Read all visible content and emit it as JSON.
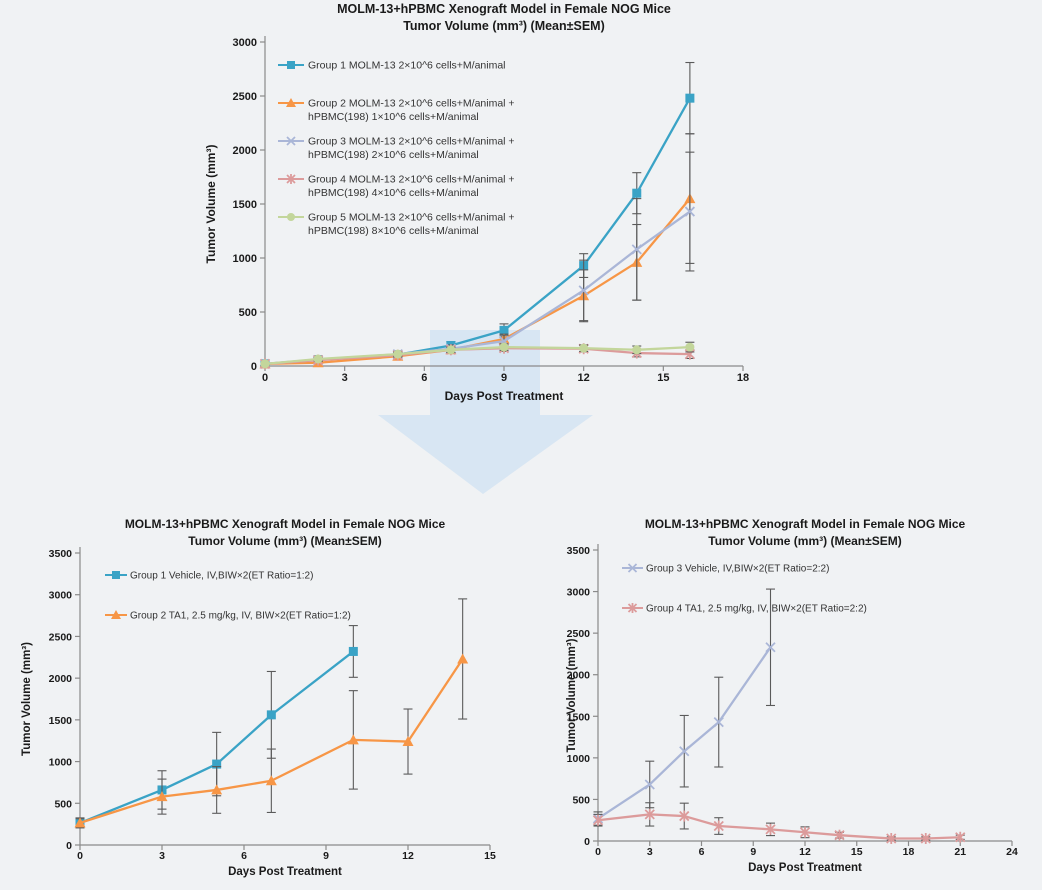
{
  "page": {
    "background_color": "#F0F2F4"
  },
  "arrow": {
    "name": "down-arrow",
    "fill_color": "#D6E5F2"
  },
  "colors": {
    "axis": "#8A8A8A",
    "error_bar": "#5A5A5A",
    "tick_label": "#1A1A1A",
    "legend_text": "#333333"
  },
  "chart_data": [
    {
      "id": "combined-model-chart",
      "type": "line",
      "title": [
        "MOLM-13+hPBMC Xenograft Model in Female NOG Mice",
        "Tumor Volume (mm³) (Mean±SEM)"
      ],
      "xlabel": "Days Post Treatment",
      "ylabel": "Tumor Volume (mm³)",
      "xlim": [
        0,
        18
      ],
      "xtick_step": 3,
      "ylim": [
        0,
        3000
      ],
      "ytick_step": 500,
      "grid": false,
      "legend_position": "upper-left-inside",
      "series": [
        {
          "name": "Group 1 MOLM-13 2×10^6 cells+M/animal",
          "legend_lines": [
            "Group 1 MOLM-13 2×10^6 cells+M/animal"
          ],
          "color": "#3AA3C6",
          "marker": "square",
          "x": [
            0,
            2,
            5,
            7,
            9,
            12,
            14,
            16
          ],
          "y": [
            20,
            60,
            105,
            190,
            330,
            930,
            1600,
            2480
          ],
          "err": [
            5,
            15,
            25,
            35,
            60,
            110,
            190,
            330
          ]
        },
        {
          "name": "Group 2 MOLM-13 2×10^6 cells+M/animal + hPBMC(198) 1×10^6 cells+M/animal",
          "legend_lines": [
            "Group 2 MOLM-13 2×10^6 cells+M/animal +",
            "hPBMC(198) 1×10^6 cells+M/animal"
          ],
          "color": "#F79646",
          "marker": "triangle",
          "x": [
            0,
            2,
            5,
            7,
            9,
            12,
            14,
            16
          ],
          "y": [
            20,
            30,
            90,
            150,
            250,
            650,
            960,
            1550
          ],
          "err": [
            5,
            10,
            20,
            30,
            45,
            240,
            350,
            600
          ]
        },
        {
          "name": "Group 3 MOLM-13 2×10^6 cells+M/animal + hPBMC(198) 2×10^6 cells+M/animal",
          "legend_lines": [
            "Group 3 MOLM-13 2×10^6 cells+M/animal +",
            "hPBMC(198) 2×10^6 cells+M/animal"
          ],
          "color": "#AAB6D7",
          "marker": "x",
          "x": [
            0,
            2,
            5,
            7,
            9,
            12,
            14,
            16
          ],
          "y": [
            20,
            55,
            110,
            160,
            230,
            700,
            1080,
            1430
          ],
          "err": [
            5,
            12,
            22,
            35,
            55,
            280,
            470,
            550
          ]
        },
        {
          "name": "Group 4 MOLM-13 2×10^6 cells+M/animal + hPBMC(198) 4×10^6 cells+M/animal",
          "legend_lines": [
            "Group 4 MOLM-13 2×10^6 cells+M/animal +",
            "hPBMC(198) 4×10^6 cells+M/animal"
          ],
          "color": "#DC9B9B",
          "marker": "asterisk",
          "x": [
            0,
            2,
            5,
            7,
            9,
            12,
            14,
            16
          ],
          "y": [
            20,
            55,
            100,
            150,
            165,
            160,
            120,
            110
          ],
          "err": [
            5,
            10,
            18,
            25,
            30,
            30,
            35,
            40
          ]
        },
        {
          "name": "Group 5 MOLM-13 2×10^6 cells+M/animal + hPBMC(198) 8×10^6 cells+M/animal",
          "legend_lines": [
            "Group 5 MOLM-13 2×10^6 cells+M/animal +",
            "hPBMC(198) 8×10^6 cells+M/animal"
          ],
          "color": "#C3D69B",
          "marker": "circle",
          "x": [
            0,
            2,
            5,
            7,
            9,
            12,
            14,
            16
          ],
          "y": [
            20,
            65,
            110,
            150,
            175,
            165,
            150,
            175
          ],
          "err": [
            5,
            12,
            18,
            25,
            30,
            30,
            35,
            45
          ]
        }
      ]
    },
    {
      "id": "et-ratio-1-2-chart",
      "type": "line",
      "title": [
        "MOLM-13+hPBMC Xenograft Model in Female NOG Mice",
        "Tumor Volume (mm³) (Mean±SEM)"
      ],
      "xlabel": "Days Post Treatment",
      "ylabel": "Tumor Volume (mm³)",
      "xlim": [
        0,
        15
      ],
      "xtick_step": 3,
      "ylim": [
        0,
        3500
      ],
      "ytick_step": 500,
      "grid": false,
      "legend_position": "upper-left-inside",
      "series": [
        {
          "name": "Group 1 Vehicle, IV,BIW×2(ET Ratio=1:2)",
          "legend_lines": [
            "Group 1 Vehicle, IV,BIW×2(ET Ratio=1:2)"
          ],
          "color": "#3AA3C6",
          "marker": "square",
          "x": [
            0,
            3,
            5,
            7,
            10
          ],
          "y": [
            265,
            660,
            970,
            1560,
            2320
          ],
          "err": [
            60,
            230,
            380,
            520,
            310
          ]
        },
        {
          "name": "Group 2 TA1, 2.5 mg/kg, IV, BIW×2(ET Ratio=1:2)",
          "legend_lines": [
            "Group 2 TA1, 2.5 mg/kg, IV, BIW×2(ET Ratio=1:2)"
          ],
          "color": "#F79646",
          "marker": "triangle",
          "x": [
            0,
            3,
            5,
            7,
            10,
            12,
            14
          ],
          "y": [
            265,
            580,
            660,
            770,
            1260,
            1240,
            2230
          ],
          "err": [
            50,
            210,
            280,
            380,
            590,
            390,
            720
          ]
        }
      ]
    },
    {
      "id": "et-ratio-2-2-chart",
      "type": "line",
      "title": [
        "MOLM-13+hPBMC Xenograft Model in Female NOG Mice",
        "Tumor Volume (mm³) (Mean±SEM)"
      ],
      "xlabel": "Days Post Treatment",
      "ylabel": "Tumor Volume (mm³)",
      "xlim": [
        0,
        24
      ],
      "xtick_step": 3,
      "ylim": [
        0,
        3500
      ],
      "ytick_step": 500,
      "grid": false,
      "legend_position": "upper-left-inside",
      "series": [
        {
          "name": "Group 3 Vehicle, IV,BIW×2(ET Ratio=2:2)",
          "legend_lines": [
            "Group 3 Vehicle, IV,BIW×2(ET Ratio=2:2)"
          ],
          "color": "#AAB6D7",
          "marker": "x",
          "x": [
            0,
            3,
            5,
            7,
            10
          ],
          "y": [
            270,
            680,
            1080,
            1430,
            2330
          ],
          "err": [
            80,
            280,
            430,
            540,
            700
          ]
        },
        {
          "name": "Group 4 TA1, 2.5 mg/kg, IV, BIW×2(ET Ratio=2:2)",
          "legend_lines": [
            "Group 4 TA1, 2.5 mg/kg, IV, BIW×2(ET Ratio=2:2)"
          ],
          "color": "#DC9B9B",
          "marker": "asterisk",
          "x": [
            0,
            3,
            5,
            7,
            10,
            12,
            14,
            17,
            19,
            21
          ],
          "y": [
            250,
            320,
            300,
            180,
            140,
            105,
            70,
            30,
            30,
            45
          ],
          "err": [
            70,
            140,
            155,
            100,
            75,
            65,
            35,
            20,
            20,
            25
          ]
        }
      ]
    }
  ]
}
